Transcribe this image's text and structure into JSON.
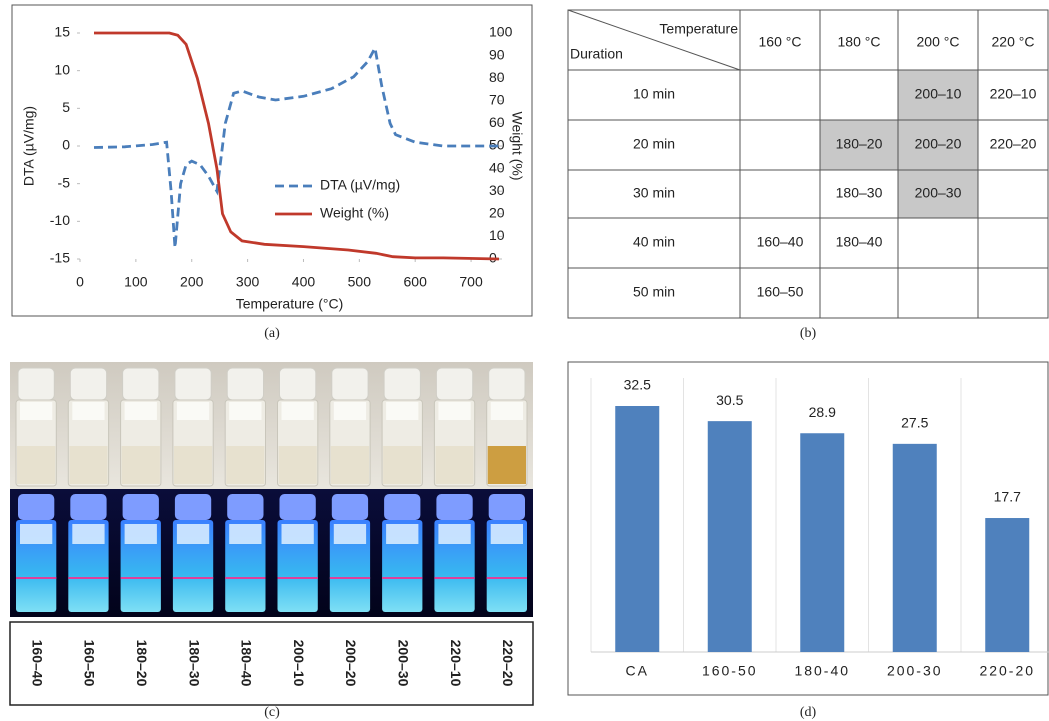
{
  "chart_data": [
    {
      "type": "line",
      "x_label": "Temperature (°C)",
      "y_label": "DTA (µV/mg)",
      "y2_label": "Weight (%)",
      "xlim": [
        0,
        750
      ],
      "xticks": [
        0,
        100,
        200,
        300,
        400,
        500,
        600,
        700
      ],
      "ylim": [
        -15,
        15
      ],
      "yticks": [
        -15,
        -10,
        -5,
        0,
        5,
        10,
        15
      ],
      "y2lim": [
        0,
        100
      ],
      "y2ticks": [
        0,
        10,
        20,
        30,
        40,
        50,
        60,
        70,
        80,
        90,
        100
      ],
      "series": [
        {
          "name": "DTA (µV/mg)",
          "color": "#4a7ebb",
          "dashed": true,
          "x": [
            25,
            80,
            130,
            155,
            163,
            170,
            180,
            190,
            200,
            215,
            230,
            245,
            260,
            275,
            290,
            320,
            350,
            400,
            450,
            490,
            515,
            528,
            540,
            555,
            565,
            600,
            650,
            750
          ],
          "values": [
            -0.2,
            -0.1,
            0.2,
            0.5,
            -6,
            -13.5,
            -5,
            -2.5,
            -2,
            -2.5,
            -4,
            -6,
            3,
            7,
            7.3,
            6.5,
            6.1,
            6.6,
            7.6,
            9.2,
            11.2,
            13,
            8,
            3,
            1.5,
            0.5,
            0,
            0
          ]
        },
        {
          "name": "Weight (%)",
          "color": "#c0392b",
          "axis": "y2",
          "x": [
            25,
            100,
            160,
            175,
            190,
            210,
            230,
            245,
            255,
            270,
            290,
            330,
            400,
            480,
            530,
            560,
            600,
            650,
            750
          ],
          "values": [
            100,
            100,
            100,
            99,
            95,
            80,
            60,
            40,
            20,
            12,
            8,
            6.5,
            5.5,
            4,
            2.5,
            1,
            0.5,
            0.5,
            0
          ]
        }
      ],
      "caption": "(a)"
    },
    {
      "type": "bar",
      "categories": [
        "CA",
        "160-50",
        "180-40",
        "200-30",
        "220-20"
      ],
      "values": [
        32.5,
        30.5,
        28.9,
        27.5,
        17.7
      ],
      "color": "#4f81bd",
      "caption": "(d)"
    }
  ],
  "table": {
    "corner_top": "Temperature",
    "corner_bottom": "Duration",
    "columns": [
      "160 °C",
      "180 °C",
      "200 °C",
      "220 °C"
    ],
    "rows": [
      {
        "label": "10 min",
        "cells": [
          null,
          null,
          {
            "text": "200–10",
            "shaded": true
          },
          {
            "text": "220–10",
            "shaded": false
          }
        ]
      },
      {
        "label": "20 min",
        "cells": [
          null,
          {
            "text": "180–20",
            "shaded": true
          },
          {
            "text": "200–20",
            "shaded": true
          },
          {
            "text": "220–20",
            "shaded": false
          }
        ]
      },
      {
        "label": "30 min",
        "cells": [
          null,
          {
            "text": "180–30",
            "shaded": false
          },
          {
            "text": "200–30",
            "shaded": true
          },
          null
        ]
      },
      {
        "label": "40 min",
        "cells": [
          {
            "text": "160–40",
            "shaded": false
          },
          {
            "text": "180–40",
            "shaded": false
          },
          null,
          null
        ]
      },
      {
        "label": "50 min",
        "cells": [
          {
            "text": "160–50",
            "shaded": false
          },
          null,
          null,
          null
        ]
      }
    ],
    "caption": "(b)"
  },
  "photo": {
    "labels": [
      "160–40",
      "160–50",
      "180–20",
      "180–30",
      "180–40",
      "200–10",
      "200–20",
      "200–30",
      "220–10",
      "220–20"
    ],
    "caption": "(c)"
  }
}
